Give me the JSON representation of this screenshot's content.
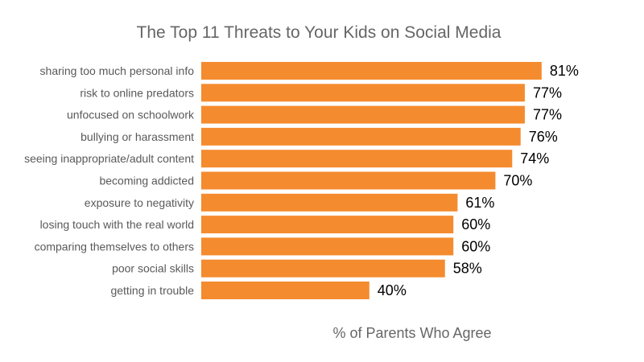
{
  "chart_data": {
    "type": "bar",
    "orientation": "horizontal",
    "title": "The Top 11 Threats to Your Kids on Social Media",
    "xlabel": "% of Parents Who Agree",
    "ylabel": "",
    "value_suffix": "%",
    "xlim": [
      0,
      100
    ],
    "grid": false,
    "legend": "none",
    "bar_color": "#f58b2f",
    "categories": [
      "sharing too much personal info",
      "risk to online predators",
      "unfocused on schoolwork",
      "bullying or harassment",
      "seeing inappropriate/adult content",
      "becoming addicted",
      "exposure to negativity",
      "losing touch with the real world",
      "comparing themselves to others",
      "poor social skills",
      "getting in trouble"
    ],
    "values": [
      81,
      77,
      77,
      76,
      74,
      70,
      61,
      60,
      60,
      58,
      40
    ],
    "data_labels": [
      "81%",
      "77%",
      "77%",
      "76%",
      "74%",
      "70%",
      "61%",
      "60%",
      "60%",
      "58%",
      "40%"
    ]
  }
}
